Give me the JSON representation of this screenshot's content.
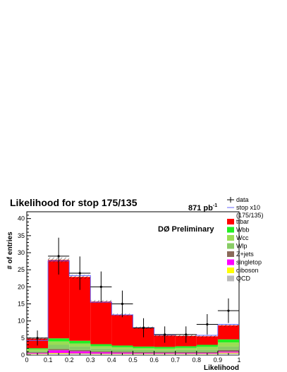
{
  "chart_data": {
    "type": "bar",
    "stacked": true,
    "title": "Likelihood for stop 175/135",
    "luminosity_label": "871 pb",
    "luminosity_exponent": "-1",
    "experiment_label": "DØ Preliminary",
    "xlabel": "Likelihood",
    "ylabel": "# of entries",
    "xlim": [
      0,
      1
    ],
    "ylim": [
      0,
      42
    ],
    "x_ticks": [
      "0",
      "0.1",
      "0.2",
      "0.3",
      "0.4",
      "0.5",
      "0.6",
      "0.7",
      "0.8",
      "0.9",
      "1"
    ],
    "y_ticks": [
      "0",
      "5",
      "10",
      "15",
      "20",
      "25",
      "30",
      "35",
      "40"
    ],
    "bin_edges": [
      0,
      0.1,
      0.2,
      0.3,
      0.4,
      0.5,
      0.6,
      0.7,
      0.8,
      0.9,
      1.0
    ],
    "series": [
      {
        "name": "QCD",
        "color": "#bbbbbb",
        "values": [
          0.3,
          0.4,
          0.4,
          0.3,
          0.3,
          0.3,
          0.3,
          0.3,
          0.3,
          0.5
        ]
      },
      {
        "name": "diboson",
        "color": "#ffff00",
        "values": [
          0.1,
          0.2,
          0.1,
          0.1,
          0.1,
          0.1,
          0.1,
          0.1,
          0.1,
          0.2
        ]
      },
      {
        "name": "singletop",
        "color": "#ff00ff",
        "values": [
          0.2,
          0.8,
          0.6,
          0.4,
          0.3,
          0.2,
          0.2,
          0.2,
          0.2,
          0.3
        ]
      },
      {
        "name": "Z+jets",
        "color": "#8a6a5a",
        "values": [
          0.2,
          0.4,
          0.4,
          0.3,
          0.3,
          0.3,
          0.3,
          0.3,
          0.3,
          0.5
        ]
      },
      {
        "name": "Wlp",
        "color": "#88cc66",
        "values": [
          0.4,
          1.2,
          1.0,
          0.8,
          0.7,
          0.6,
          0.5,
          0.6,
          0.7,
          1.0
        ]
      },
      {
        "name": "Wcc",
        "color": "#99dd55",
        "values": [
          0.5,
          1.0,
          0.9,
          0.7,
          0.6,
          0.5,
          0.5,
          0.6,
          0.8,
          1.2
        ]
      },
      {
        "name": "Wbb",
        "color": "#22ee22",
        "values": [
          0.3,
          0.9,
          0.8,
          0.6,
          0.5,
          0.5,
          0.5,
          0.5,
          0.6,
          0.9
        ]
      },
      {
        "name": "ttbar",
        "color": "#ff0000",
        "values": [
          2.8,
          23.0,
          18.7,
          12.5,
          9.0,
          5.5,
          3.3,
          3.0,
          2.5,
          4.1
        ]
      }
    ],
    "stop_signal": {
      "name": "stop x10",
      "name_line2": "(175/135)",
      "color": "#6666ff",
      "values": [
        4.3,
        27.6,
        23.3,
        15.5,
        11.8,
        8.0,
        5.9,
        6.0,
        5.8,
        9.0
      ]
    },
    "data": {
      "name": "data",
      "values": [
        5,
        29,
        24,
        20,
        15,
        8,
        6,
        6,
        9,
        13
      ],
      "errors": [
        2.2,
        5.4,
        4.9,
        4.5,
        3.9,
        2.8,
        2.4,
        2.4,
        3.0,
        3.6
      ]
    }
  }
}
